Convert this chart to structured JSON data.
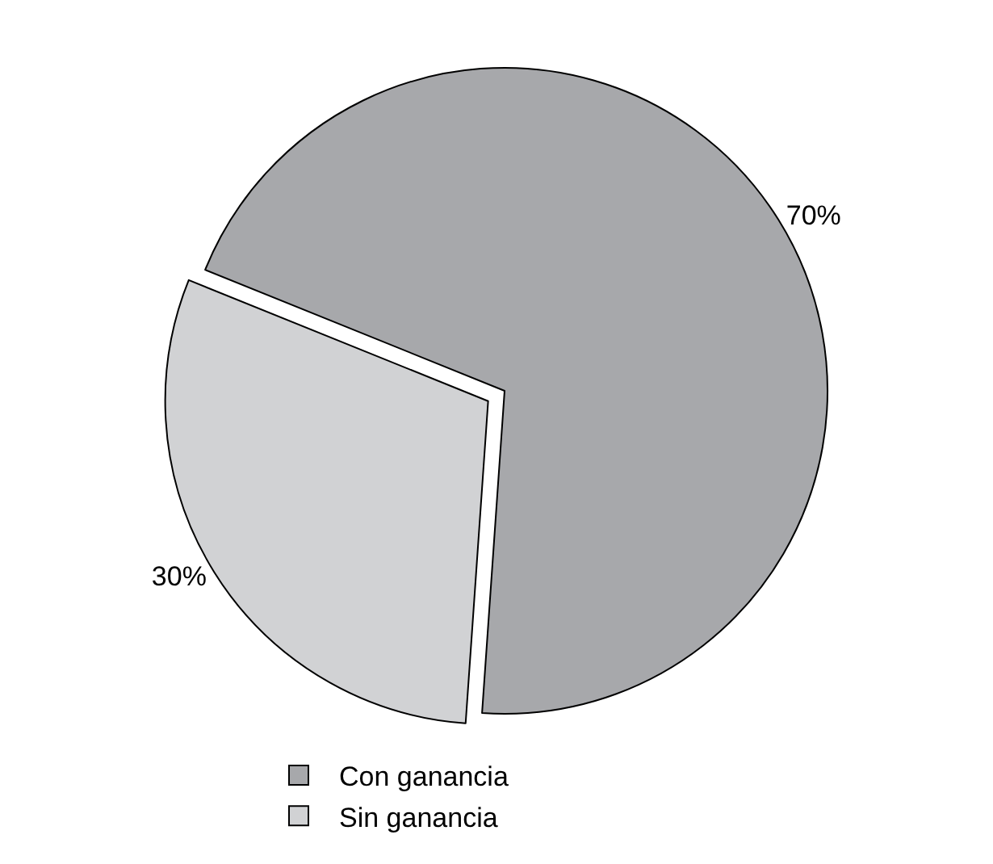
{
  "chart_data": {
    "type": "pie",
    "categories": [
      "Con ganancia",
      "Sin ganancia"
    ],
    "values": [
      70,
      30
    ],
    "colors": [
      "#a7a8ab",
      "#d1d2d4"
    ],
    "value_labels": [
      "70%",
      "30%"
    ],
    "legend": "bottom"
  }
}
